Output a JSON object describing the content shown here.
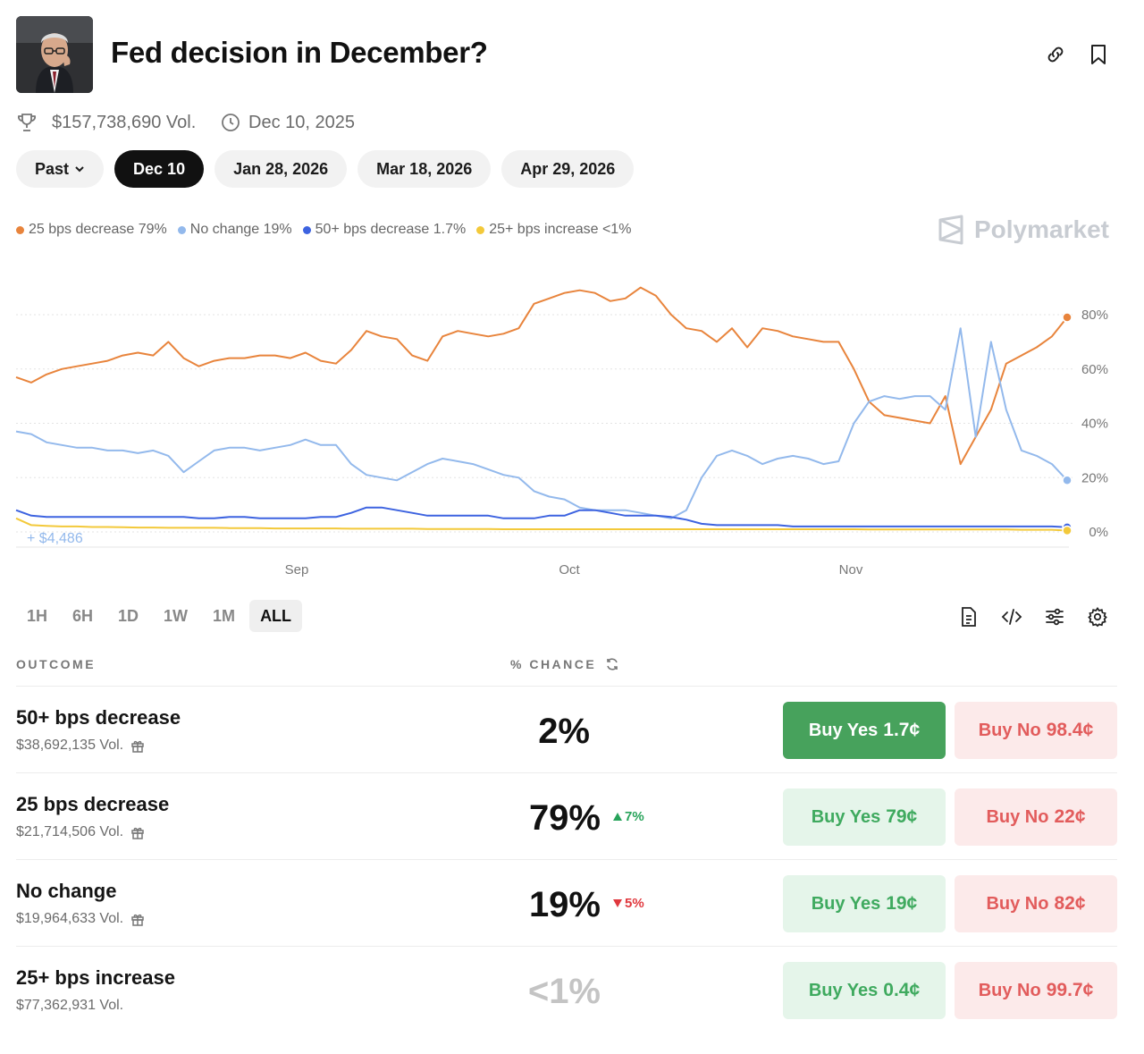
{
  "header": {
    "title": "Fed decision in December?",
    "volume": "$157,738,690 Vol.",
    "date": "Dec 10, 2025"
  },
  "tabs": [
    {
      "label": "Past",
      "active": false,
      "dropdown": true
    },
    {
      "label": "Dec 10",
      "active": true
    },
    {
      "label": "Jan 28, 2026",
      "active": false
    },
    {
      "label": "Mar 18, 2026",
      "active": false
    },
    {
      "label": "Apr 29, 2026",
      "active": false
    }
  ],
  "legend": [
    {
      "label": "25 bps decrease 79%",
      "color": "#e8843c"
    },
    {
      "label": "No change 19%",
      "color": "#93b9ec"
    },
    {
      "label": "50+ bps decrease 1.7%",
      "color": "#3d63e0"
    },
    {
      "label": "25+ bps increase <1%",
      "color": "#f3c93a"
    }
  ],
  "brand": "Polymarket",
  "chart_data": {
    "type": "line",
    "x_ticks": [
      "Sep",
      "Oct",
      "Nov"
    ],
    "y_ticks": [
      "80%",
      "60%",
      "40%",
      "20%",
      "0%"
    ],
    "ylim": [
      0,
      100
    ],
    "annotation": "+ $4,486",
    "grid": true,
    "series": [
      {
        "name": "25 bps decrease",
        "color": "#e8843c",
        "values": [
          57,
          55,
          58,
          60,
          61,
          62,
          63,
          65,
          66,
          65,
          70,
          64,
          61,
          63,
          64,
          64,
          65,
          65,
          64,
          66,
          63,
          62,
          67,
          74,
          72,
          71,
          65,
          63,
          72,
          74,
          73,
          72,
          73,
          75,
          84,
          86,
          88,
          89,
          88,
          85,
          86,
          90,
          87,
          80,
          75,
          74,
          70,
          75,
          68,
          75,
          74,
          72,
          71,
          70,
          70,
          60,
          48,
          43,
          42,
          41,
          40,
          50,
          25,
          35,
          45,
          62,
          65,
          68,
          72,
          79
        ]
      },
      {
        "name": "No change",
        "color": "#93b9ec",
        "values": [
          37,
          36,
          33,
          32,
          31,
          31,
          30,
          30,
          29,
          30,
          28,
          22,
          26,
          30,
          31,
          31,
          30,
          31,
          32,
          34,
          32,
          32,
          25,
          21,
          20,
          19,
          22,
          25,
          27,
          26,
          25,
          23,
          21,
          20,
          15,
          13,
          12,
          9,
          8,
          8,
          8,
          7,
          6,
          5,
          8,
          20,
          28,
          30,
          28,
          25,
          27,
          28,
          27,
          25,
          26,
          40,
          48,
          50,
          49,
          50,
          50,
          45,
          75,
          35,
          70,
          45,
          30,
          28,
          25,
          19
        ]
      },
      {
        "name": "50+ bps decrease",
        "color": "#3d63e0",
        "values": [
          8,
          6,
          5.5,
          5.5,
          5.5,
          5.5,
          5.5,
          5.5,
          5.5,
          5.5,
          5.5,
          5.5,
          5,
          5,
          5.5,
          5.5,
          5,
          5,
          5,
          5,
          5.5,
          5.5,
          7,
          9,
          9,
          8,
          7,
          6,
          6,
          6,
          6,
          6,
          5,
          5,
          5,
          6,
          6,
          8,
          8,
          7,
          6,
          6,
          6,
          5.5,
          4.5,
          3,
          2.5,
          2.5,
          2.5,
          2.5,
          2.5,
          2,
          2,
          2,
          2,
          2,
          2,
          2,
          2,
          2,
          2,
          2,
          2,
          2,
          2,
          2,
          2,
          2,
          2,
          1.7
        ]
      },
      {
        "name": "25+ bps increase",
        "color": "#f3c93a",
        "values": [
          5,
          2.5,
          2.2,
          2,
          2,
          1.8,
          1.8,
          1.7,
          1.6,
          1.6,
          1.5,
          1.5,
          1.5,
          1.5,
          1.4,
          1.4,
          1.4,
          1.3,
          1.3,
          1.3,
          1.3,
          1.3,
          1.2,
          1.2,
          1.2,
          1.2,
          1.2,
          1.1,
          1.1,
          1.1,
          1.1,
          1.1,
          1,
          1,
          1,
          1,
          1,
          1,
          1,
          1,
          1,
          1,
          1,
          1,
          1,
          1,
          1,
          1,
          1,
          1,
          1,
          1,
          1,
          1,
          1,
          1,
          0.9,
          0.9,
          0.9,
          0.9,
          0.9,
          0.9,
          0.9,
          0.9,
          0.9,
          0.9,
          0.8,
          0.8,
          0.8,
          0.5
        ]
      }
    ]
  },
  "ranges": [
    {
      "label": "1H",
      "active": false
    },
    {
      "label": "6H",
      "active": false
    },
    {
      "label": "1D",
      "active": false
    },
    {
      "label": "1W",
      "active": false
    },
    {
      "label": "1M",
      "active": false
    },
    {
      "label": "ALL",
      "active": true
    }
  ],
  "table": {
    "col_outcome": "OUTCOME",
    "col_chance": "% CHANCE",
    "rows": [
      {
        "name": "50+ bps decrease",
        "vol": "$38,692,135 Vol.",
        "gift": true,
        "chance": "2%",
        "muted": false,
        "delta": "",
        "delta_dir": "",
        "yes_label": "Buy Yes",
        "yes_price": "1.7¢",
        "yes_strong": true,
        "no_label": "Buy No",
        "no_price": "98.4¢"
      },
      {
        "name": "25 bps decrease",
        "vol": "$21,714,506 Vol.",
        "gift": true,
        "chance": "79%",
        "muted": false,
        "delta": "7%",
        "delta_dir": "up",
        "yes_label": "Buy Yes",
        "yes_price": "79¢",
        "yes_strong": false,
        "no_label": "Buy No",
        "no_price": "22¢"
      },
      {
        "name": "No change",
        "vol": "$19,964,633 Vol.",
        "gift": true,
        "chance": "19%",
        "muted": false,
        "delta": "5%",
        "delta_dir": "down",
        "yes_label": "Buy Yes",
        "yes_price": "19¢",
        "yes_strong": false,
        "no_label": "Buy No",
        "no_price": "82¢"
      },
      {
        "name": "25+ bps increase",
        "vol": "$77,362,931 Vol.",
        "gift": false,
        "chance": "<1%",
        "muted": true,
        "delta": "",
        "delta_dir": "",
        "yes_label": "Buy Yes",
        "yes_price": "0.4¢",
        "yes_strong": false,
        "no_label": "Buy No",
        "no_price": "99.7¢"
      }
    ]
  }
}
